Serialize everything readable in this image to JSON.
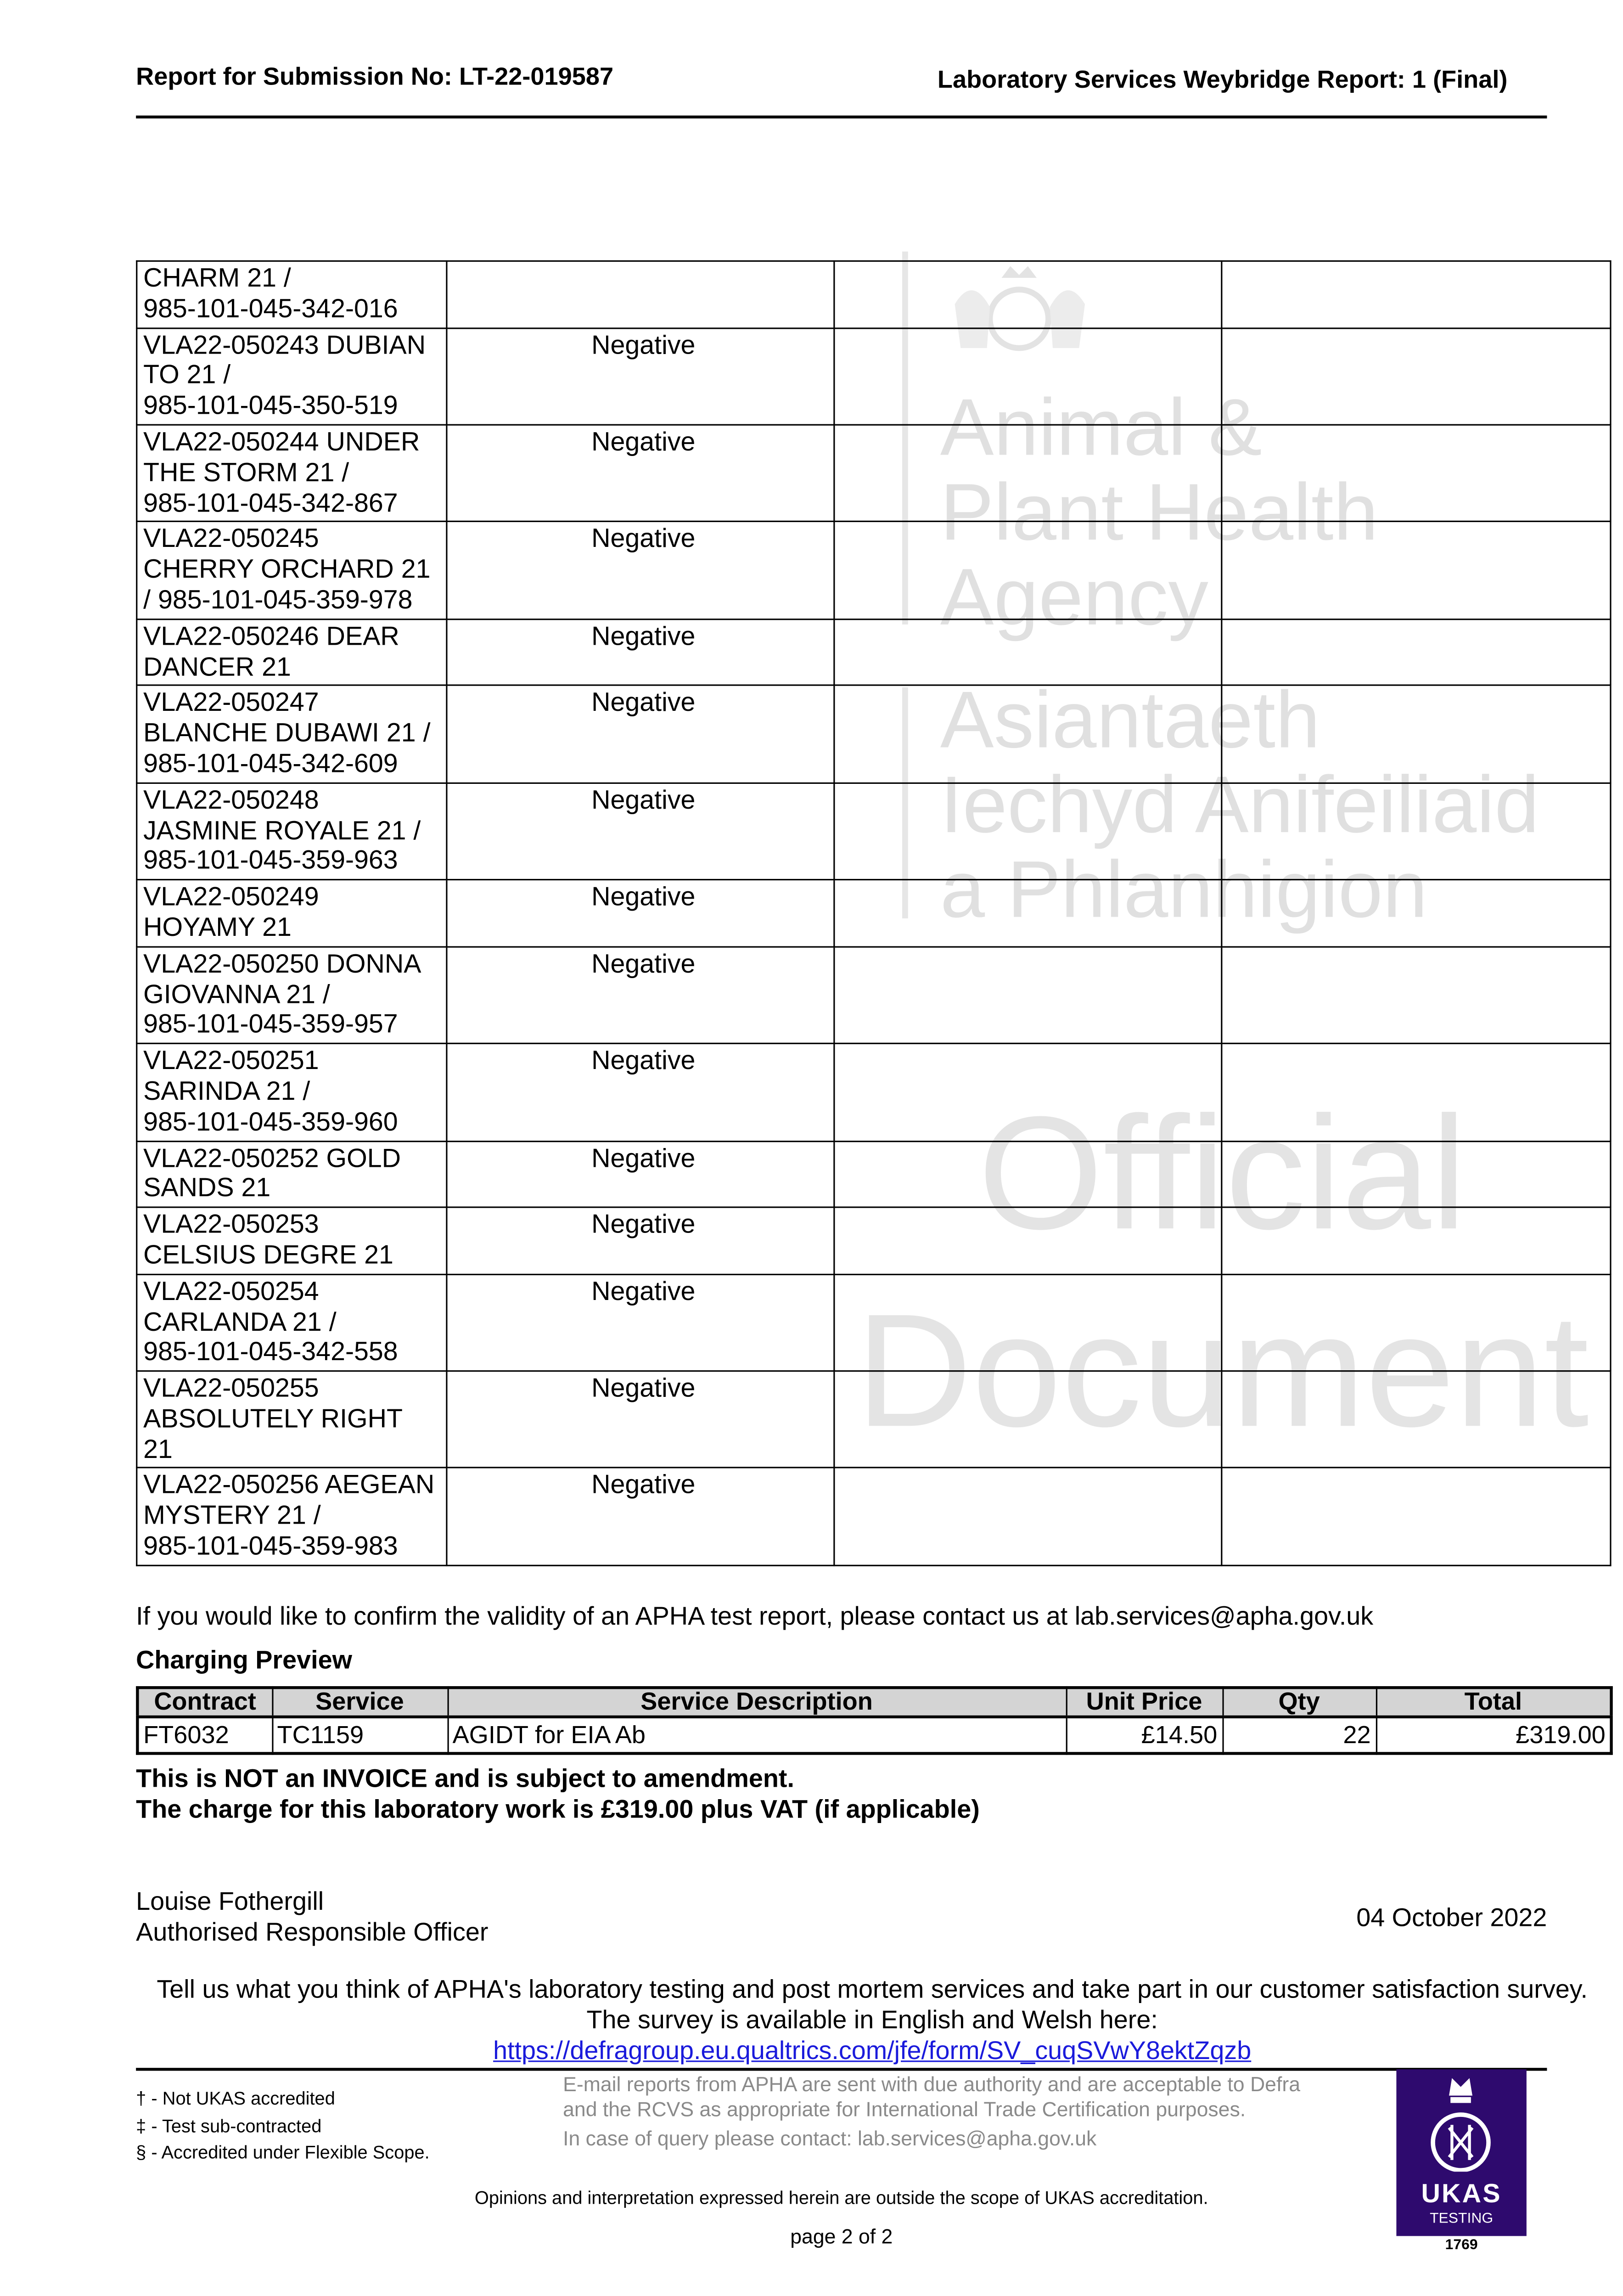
{
  "header": {
    "left": "Report for Submission No: LT-22-019587",
    "right": "Laboratory Services Weybridge Report: 1 (Final)"
  },
  "watermark": {
    "agency_lines": [
      "Animal &",
      "Plant Health",
      "Agency",
      "Asiantaeth",
      "Iechyd Anifeiliaid",
      "a Phlanhigion"
    ],
    "stamp": [
      "Official",
      "Document"
    ]
  },
  "results": [
    {
      "sample": "CHARM 21 /\n985-101-045-342-016",
      "result": ""
    },
    {
      "sample": "VLA22-050243 DUBIAN\nTO 21 /\n985-101-045-350-519",
      "result": "Negative"
    },
    {
      "sample": "VLA22-050244 UNDER\nTHE STORM 21 /\n985-101-045-342-867",
      "result": "Negative"
    },
    {
      "sample": "VLA22-050245\nCHERRY ORCHARD 21\n/ 985-101-045-359-978",
      "result": "Negative"
    },
    {
      "sample": "VLA22-050246 DEAR\nDANCER 21",
      "result": "Negative"
    },
    {
      "sample": "VLA22-050247\nBLANCHE DUBAWI 21 /\n985-101-045-342-609",
      "result": "Negative"
    },
    {
      "sample": "VLA22-050248\nJASMINE ROYALE 21 /\n985-101-045-359-963",
      "result": "Negative"
    },
    {
      "sample": "VLA22-050249\nHOYAMY 21",
      "result": "Negative"
    },
    {
      "sample": "VLA22-050250 DONNA\nGIOVANNA 21 /\n985-101-045-359-957",
      "result": "Negative"
    },
    {
      "sample": "VLA22-050251\nSARINDA 21 /\n985-101-045-359-960",
      "result": "Negative"
    },
    {
      "sample": "VLA22-050252 GOLD\nSANDS 21",
      "result": "Negative"
    },
    {
      "sample": "VLA22-050253\nCELSIUS DEGRE 21",
      "result": "Negative"
    },
    {
      "sample": "VLA22-050254\nCARLANDA 21 /\n985-101-045-342-558",
      "result": "Negative"
    },
    {
      "sample": "VLA22-050255\nABSOLUTELY RIGHT\n21",
      "result": "Negative"
    },
    {
      "sample": "VLA22-050256 AEGEAN\nMYSTERY 21 /\n985-101-045-359-983",
      "result": "Negative"
    }
  ],
  "validity_note": "If you would like to confirm the validity of an APHA test report, please contact us at lab.services@apha.gov.uk",
  "charging": {
    "title": "Charging Preview",
    "columns": [
      "Contract",
      "Service",
      "Service Description",
      "Unit Price",
      "Qty",
      "Total"
    ],
    "rows": [
      [
        "FT6032",
        "TC1159",
        "AGIDT for EIA Ab",
        "£14.50",
        "22",
        "£319.00"
      ]
    ],
    "notice1": "This is NOT an INVOICE and is subject to amendment.",
    "notice2": "The charge for this laboratory work is £319.00 plus VAT (if applicable)"
  },
  "signature": {
    "name": "Louise Fothergill",
    "role": "Authorised Responsible Officer",
    "date": "04 October 2022"
  },
  "survey": {
    "text": "Tell us what you think of APHA's laboratory testing and post mortem services and take part in our customer satisfaction survey. The survey is available in English and Welsh here:",
    "link": "https://defragroup.eu.qualtrics.com/jfe/form/SV_cuqSVwY8ektZqzb"
  },
  "footer": {
    "legend": [
      "† - Not UKAS accredited",
      "‡ - Test sub-contracted",
      "§ - Accredited under Flexible Scope."
    ],
    "email_note": "E-mail reports from APHA are sent with due authority and are acceptable to Defra and the RCVS as appropriate for International Trade Certification purposes.",
    "query_note": "In case of query please contact: lab.services@apha.gov.uk",
    "opinions": "Opinions and interpretation expressed herein are outside the scope of UKAS accreditation.",
    "page": "page 2 of 2",
    "ukas": {
      "label": "UKAS",
      "sub": "TESTING",
      "number": "1769",
      "color": "#2e0a6e"
    }
  }
}
